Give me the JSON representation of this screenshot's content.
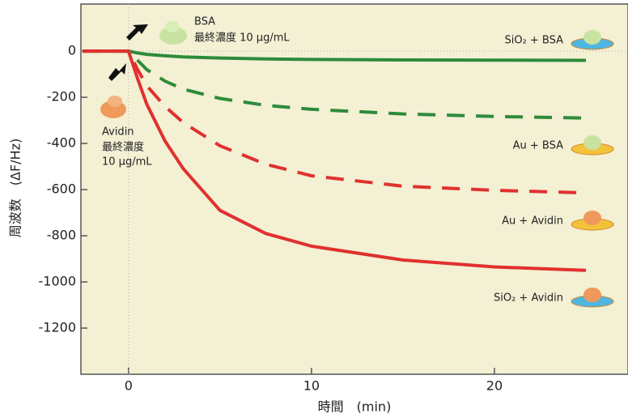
{
  "chart_data": {
    "type": "line",
    "xlabel": "時間　(min)",
    "ylabel": "周波数　(ΔF/Hz)",
    "x": [
      -2.5,
      0,
      0.5,
      1,
      2,
      3,
      5,
      7.5,
      10,
      15,
      20,
      25
    ],
    "xlim": [
      -2.6,
      27.3
    ],
    "xticks": [
      0,
      10,
      20
    ],
    "ylim": [
      -1400,
      204
    ],
    "yticks": [
      0,
      -200,
      -400,
      -600,
      -800,
      -1000,
      -1200
    ],
    "series": [
      {
        "name": "SiO₂ + BSA",
        "color": "#2e8b3a",
        "dash": false,
        "values": [
          0,
          0,
          -8,
          -14,
          -20,
          -25,
          -30,
          -34,
          -36,
          -38,
          -39,
          -40
        ]
      },
      {
        "name": "Au + BSA",
        "color": "#2e8b3a",
        "dash": true,
        "values": [
          0,
          0,
          -40,
          -80,
          -130,
          -165,
          -205,
          -235,
          -252,
          -272,
          -283,
          -290
        ]
      },
      {
        "name": "Au + Avidin",
        "color": "#e0312e",
        "dash": true,
        "values": [
          0,
          0,
          -80,
          -150,
          -240,
          -310,
          -410,
          -490,
          -540,
          -585,
          -603,
          -614
        ]
      },
      {
        "name": "SiO₂ + Avidin",
        "color": "#e0312e",
        "dash": false,
        "values": [
          0,
          0,
          -120,
          -230,
          -390,
          -510,
          -690,
          -790,
          -845,
          -905,
          -935,
          -950
        ]
      }
    ],
    "annotations": [
      "BSA",
      "最終濃度 10 µg/mL",
      "Avidin",
      "最終濃度",
      "10 µg/mL"
    ]
  }
}
